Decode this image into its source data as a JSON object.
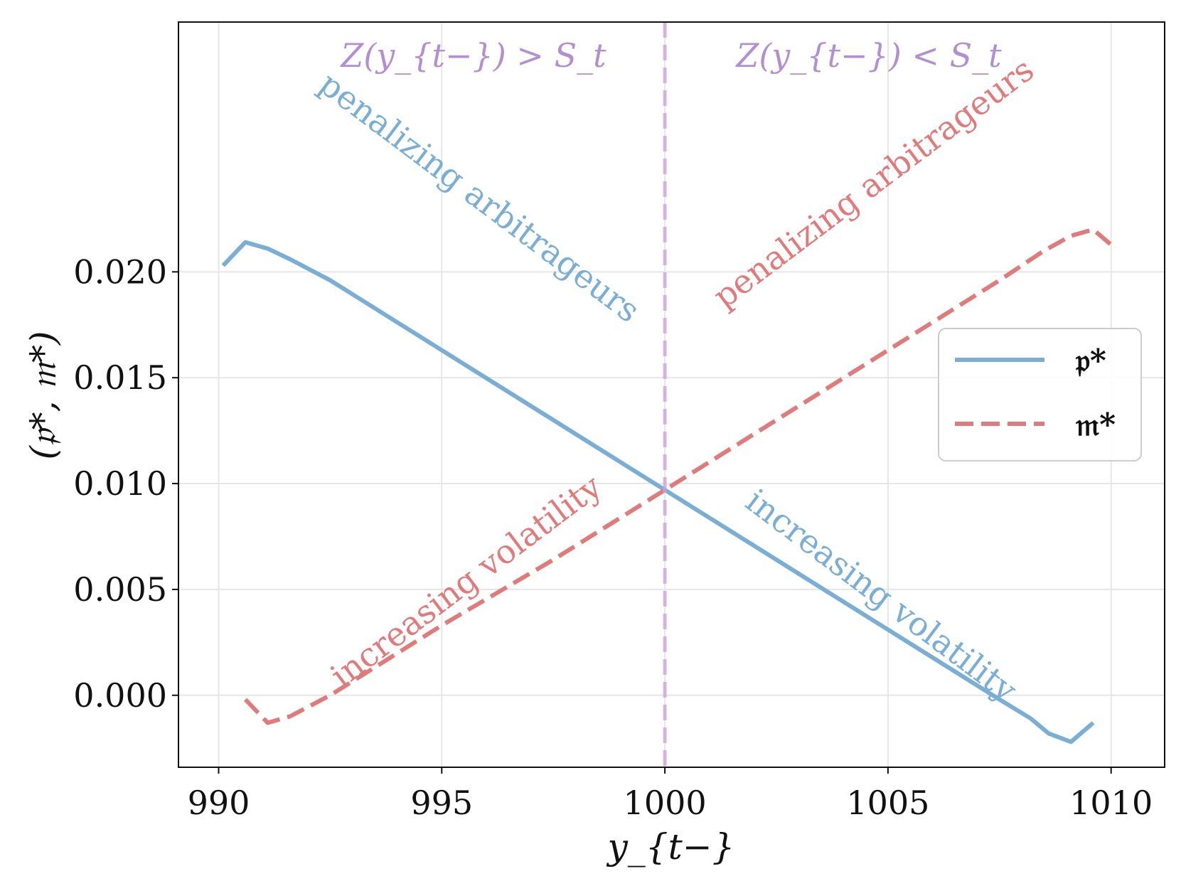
{
  "chart_data": {
    "type": "line",
    "title": "",
    "xlabel": "y_{t−}",
    "ylabel": "(𝔭*, 𝔪*)",
    "xlim": [
      989.1,
      1011.2
    ],
    "ylim": [
      -0.0034,
      0.0318
    ],
    "grid": true,
    "legend_position": "center-right",
    "x_ticks": [
      990,
      995,
      1000,
      1005,
      1010
    ],
    "x_tick_labels": [
      "990",
      "995",
      "1000",
      "1005",
      "1010"
    ],
    "y_ticks": [
      0.0,
      0.005,
      0.01,
      0.015,
      0.02
    ],
    "y_tick_labels": [
      "0.000",
      "0.005",
      "0.010",
      "0.015",
      "0.020"
    ],
    "series": [
      {
        "name": "𝔭*",
        "color": "#7aaed4",
        "style": "solid",
        "x": [
          990.1,
          990.6,
          991.1,
          991.6,
          992.5,
          995,
          997.5,
          1000,
          1002.5,
          1005,
          1007.5,
          1008.2,
          1008.6,
          1009.1,
          1009.6
        ],
        "y": [
          0.0203,
          0.0214,
          0.0211,
          0.0206,
          0.0196,
          0.0163,
          0.013,
          0.0097,
          0.0064,
          0.0031,
          -0.0002,
          -0.0011,
          -0.0018,
          -0.0022,
          -0.0013
        ]
      },
      {
        "name": "𝔪*",
        "color": "#e07b7b",
        "style": "dashed",
        "x": [
          990.6,
          991.1,
          991.6,
          992.5,
          995,
          997.5,
          1000,
          1002.5,
          1005,
          1007.5,
          1008.5,
          1009.1,
          1009.6,
          1010.1
        ],
        "y": [
          -0.0002,
          -0.0013,
          -0.001,
          0.0,
          0.0033,
          0.0064,
          0.0097,
          0.013,
          0.0163,
          0.0196,
          0.021,
          0.0217,
          0.022,
          0.0211
        ]
      }
    ],
    "vertical_line": {
      "x": 1000,
      "color": "#c9a0d8",
      "style": "dashed"
    },
    "region_labels": [
      {
        "text": "Z(y_{t−}) > S_t",
        "color": "#b28fd0"
      },
      {
        "text": "Z(y_{t−}) < S_t",
        "color": "#b28fd0"
      }
    ],
    "annotations": [
      {
        "text": "penalizing arbitrageurs",
        "color": "#7aaed4"
      },
      {
        "text": "penalizing arbitrageurs",
        "color": "#e07b7b"
      },
      {
        "text": "increasing volatility",
        "color": "#e07b7b"
      },
      {
        "text": "increasing volatility",
        "color": "#7aaed4"
      }
    ]
  }
}
